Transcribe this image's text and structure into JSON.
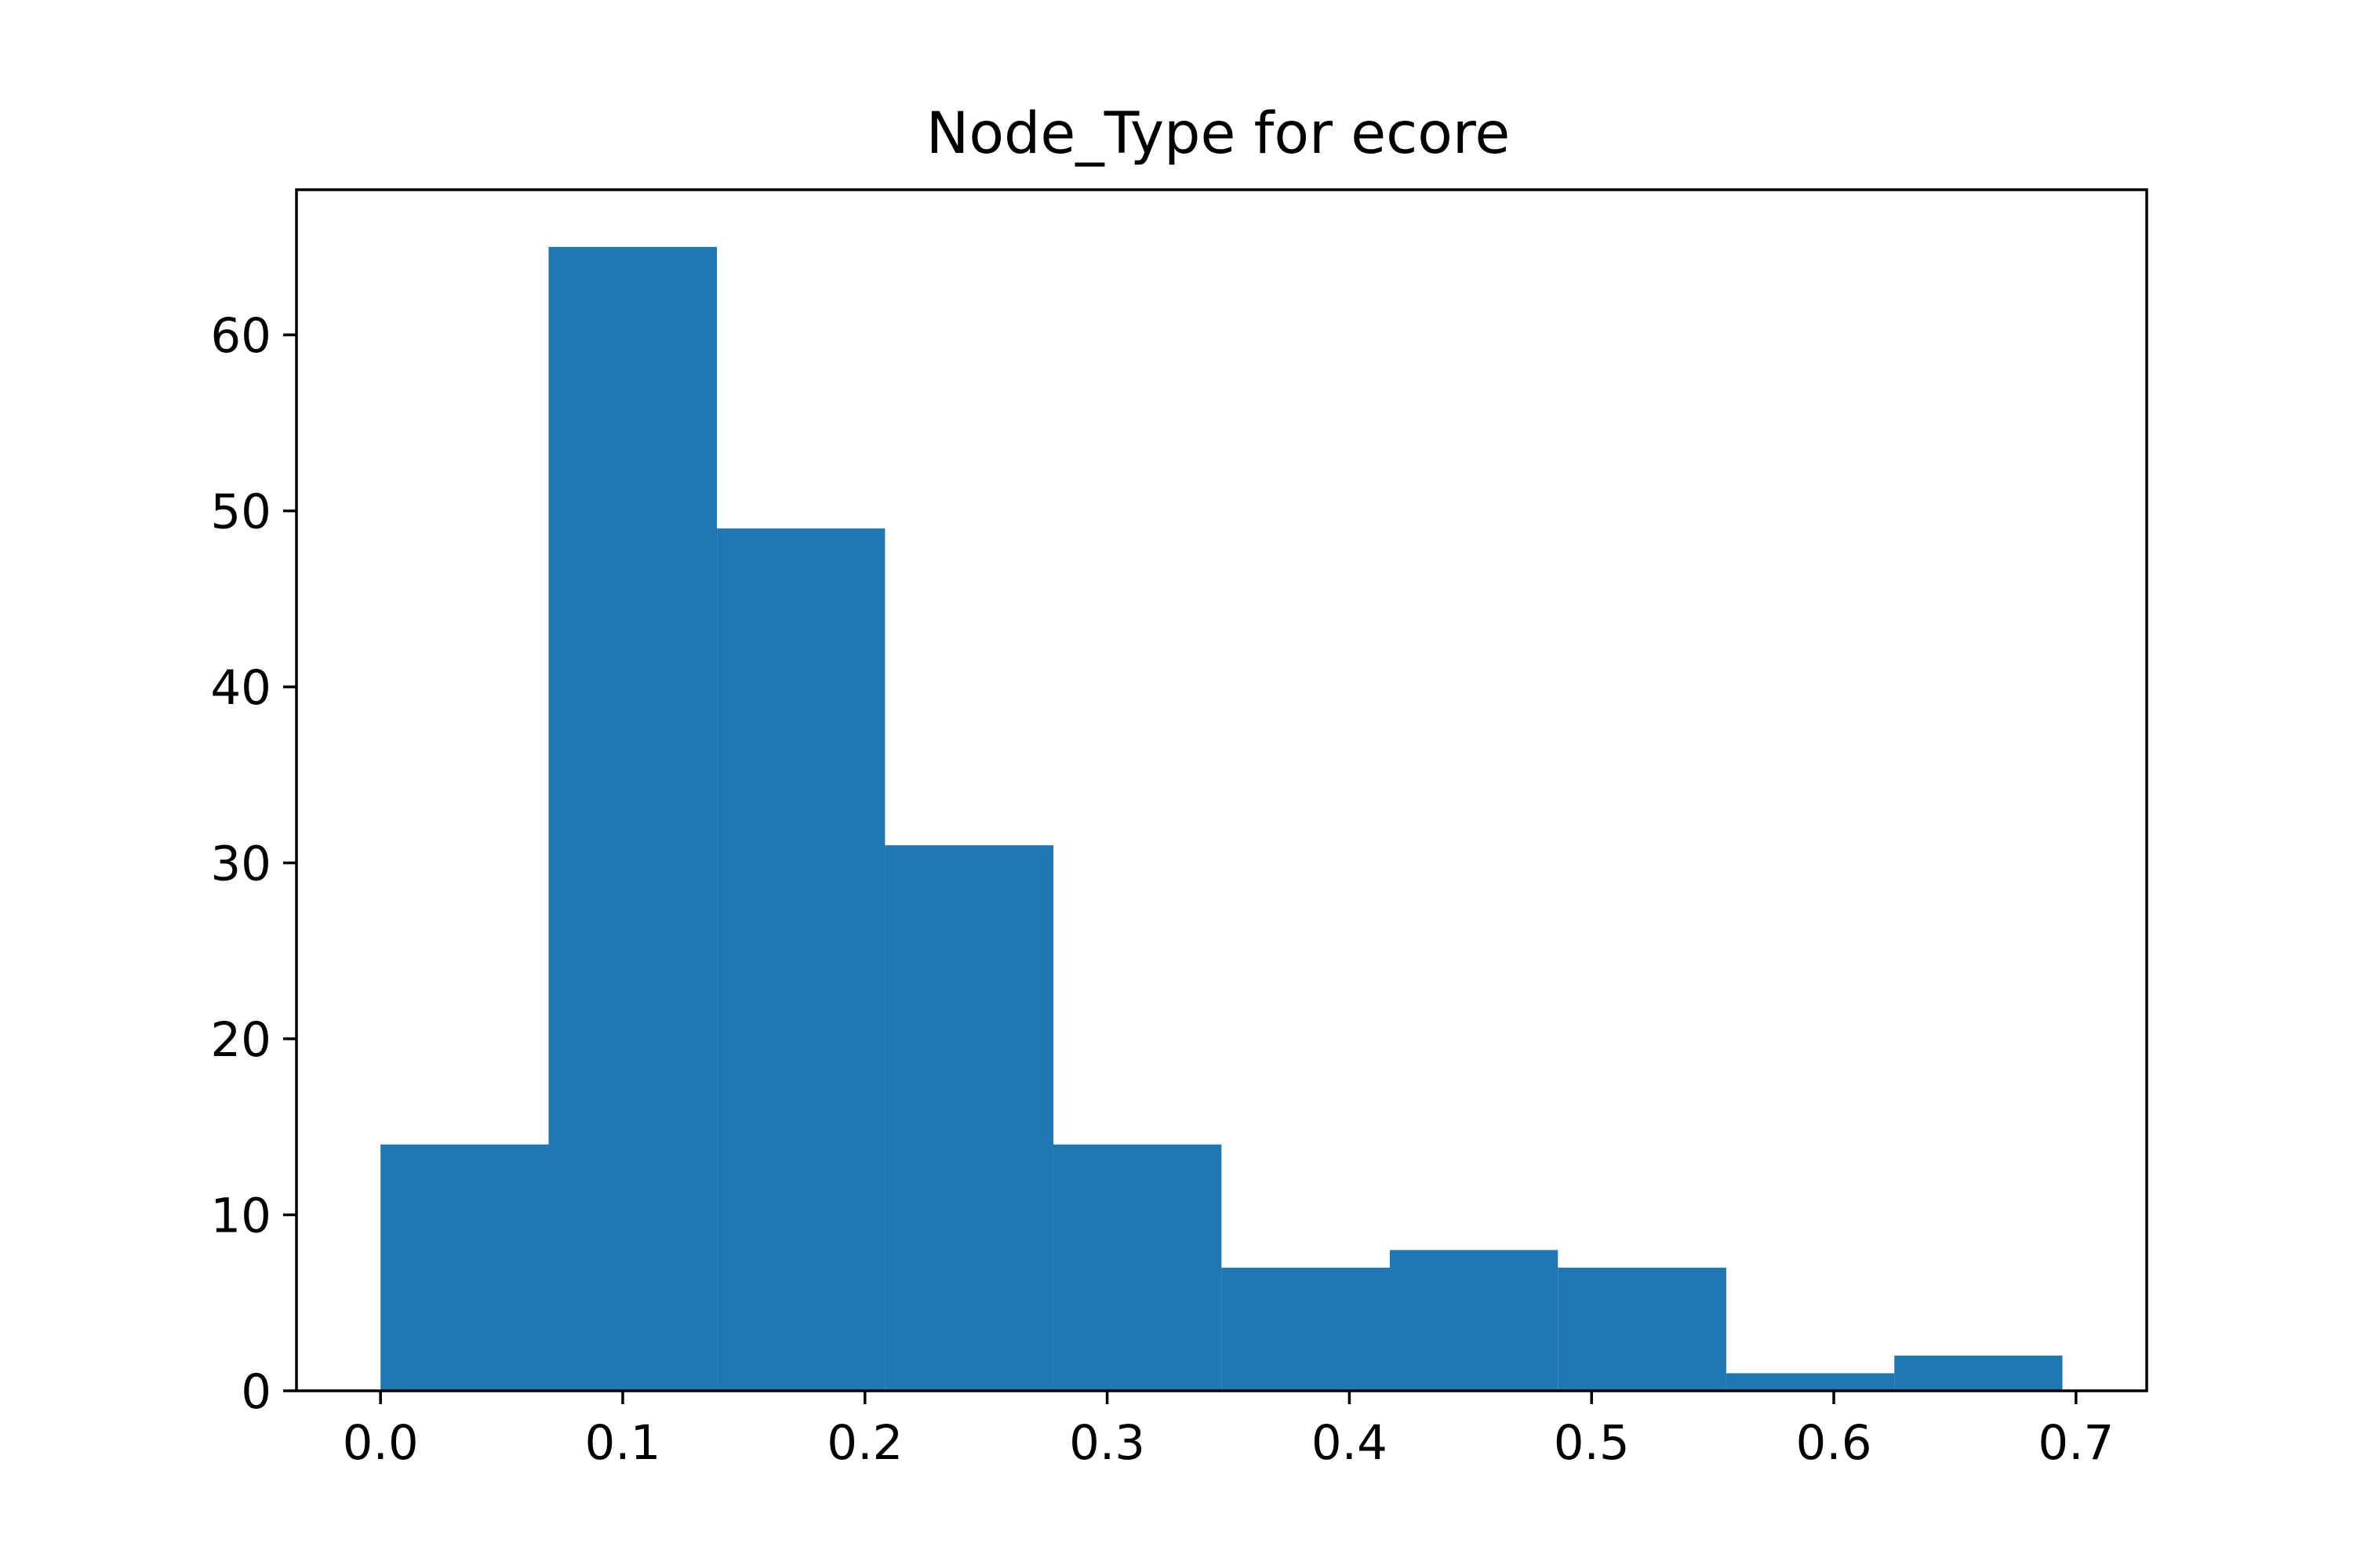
{
  "chart_data": {
    "type": "bar",
    "title": "Node_Type for ecore",
    "xlabel": "",
    "ylabel": "",
    "bin_edges": [
      0.0,
      0.0694,
      0.1389,
      0.2083,
      0.2778,
      0.3472,
      0.4167,
      0.4861,
      0.5556,
      0.625,
      0.6944
    ],
    "values": [
      14,
      65,
      49,
      31,
      14,
      7,
      8,
      7,
      1,
      2
    ],
    "xlim": [
      -0.0347,
      0.7292
    ],
    "ylim": [
      0,
      68.25
    ],
    "xticks": [
      0.0,
      0.1,
      0.2,
      0.3,
      0.4,
      0.5,
      0.6,
      0.7
    ],
    "xtick_labels": [
      "0.0",
      "0.1",
      "0.2",
      "0.3",
      "0.4",
      "0.5",
      "0.6",
      "0.7"
    ],
    "yticks": [
      0,
      10,
      20,
      30,
      40,
      50,
      60
    ],
    "ytick_labels": [
      "0",
      "10",
      "20",
      "30",
      "40",
      "50",
      "60"
    ],
    "bar_color": "#1f77b4",
    "grid": false,
    "legend": "none"
  }
}
